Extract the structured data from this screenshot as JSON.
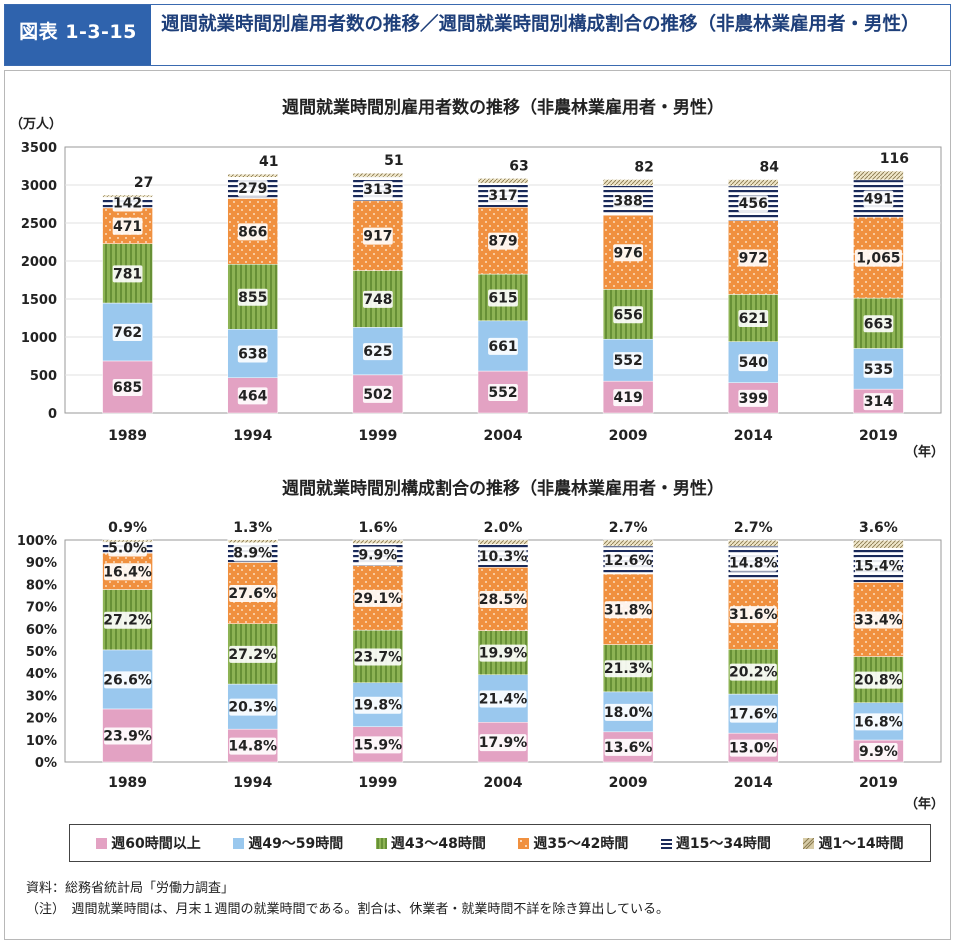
{
  "header": {
    "figure_label": "図表 1-3-15",
    "title": "週間就業時間別雇用者数の推移／週間就業時間別構成割合の推移（非農林業雇用者・男性）"
  },
  "colors": {
    "h60": "#e3a2c3",
    "h49": "#9ac8ee",
    "h43": "#8db354",
    "h35": "#f0903f",
    "h15": "#1a2a5a",
    "h1": "#d8cda8"
  },
  "legend": [
    {
      "key": "h60",
      "label": "週60時間以上",
      "pattern": "pink-icon"
    },
    {
      "key": "h49",
      "label": "週49～59時間",
      "pattern": "blue-icon"
    },
    {
      "key": "h43",
      "label": "週43～48時間",
      "pattern": "green-striped-icon"
    },
    {
      "key": "h35",
      "label": "週35～42時間",
      "pattern": "orange-dotted-icon"
    },
    {
      "key": "h15",
      "label": "週15～34時間",
      "pattern": "navy-striped-icon"
    },
    {
      "key": "h1",
      "label": "週1～14時間",
      "pattern": "beige-hatched-icon"
    }
  ],
  "notes": {
    "source": "資料：総務省統計局「労働力調査」",
    "note": "（注）　週間就業時間は、月末１週間の就業時間である。割合は、休業者・就業時間不詳を除き算出している。"
  },
  "chart_data": [
    {
      "type": "bar",
      "stacked": true,
      "title": "週間就業時間別雇用者数の推移（非農林業雇用者・男性）",
      "ylabel": "（万人）",
      "xlabel": "（年）",
      "ylim": [
        0,
        3500
      ],
      "yticks": [
        0,
        500,
        1000,
        1500,
        2000,
        2500,
        3000,
        3500
      ],
      "ytick_labels": [
        "0",
        "500",
        "1000",
        "1500",
        "2000",
        "2500",
        "3000",
        "3500"
      ],
      "categories": [
        "1989",
        "1994",
        "1999",
        "2004",
        "2009",
        "2014",
        "2019"
      ],
      "series": [
        {
          "key": "h60",
          "name": "週60時間以上",
          "values": [
            685,
            464,
            502,
            552,
            419,
            399,
            314
          ],
          "labels": [
            "685",
            "464",
            "502",
            "552",
            "419",
            "399",
            "314"
          ]
        },
        {
          "key": "h49",
          "name": "週49～59時間",
          "values": [
            762,
            638,
            625,
            661,
            552,
            540,
            535
          ],
          "labels": [
            "762",
            "638",
            "625",
            "661",
            "552",
            "540",
            "535"
          ]
        },
        {
          "key": "h43",
          "name": "週43～48時間",
          "values": [
            781,
            855,
            748,
            615,
            656,
            621,
            663
          ],
          "labels": [
            "781",
            "855",
            "748",
            "615",
            "656",
            "621",
            "663"
          ]
        },
        {
          "key": "h35",
          "name": "週35～42時間",
          "values": [
            471,
            866,
            917,
            879,
            976,
            972,
            1065
          ],
          "labels": [
            "471",
            "866",
            "917",
            "879",
            "976",
            "972",
            "1,065"
          ]
        },
        {
          "key": "h15",
          "name": "週15～34時間",
          "values": [
            142,
            279,
            313,
            317,
            388,
            456,
            491
          ],
          "labels": [
            "142",
            "279",
            "313",
            "317",
            "388",
            "456",
            "491"
          ]
        },
        {
          "key": "h1",
          "name": "週1～14時間",
          "values": [
            27,
            41,
            51,
            63,
            82,
            84,
            116
          ],
          "labels": [
            "27",
            "41",
            "51",
            "63",
            "82",
            "84",
            "116"
          ]
        }
      ]
    },
    {
      "type": "bar",
      "stacked": true,
      "title": "週間就業時間別構成割合の推移（非農林業雇用者・男性）",
      "xlabel": "（年）",
      "ylim": [
        0,
        100
      ],
      "yticks": [
        0,
        10,
        20,
        30,
        40,
        50,
        60,
        70,
        80,
        90,
        100
      ],
      "ytick_labels": [
        "0%",
        "10%",
        "20%",
        "30%",
        "40%",
        "50%",
        "60%",
        "70%",
        "80%",
        "90%",
        "100%"
      ],
      "categories": [
        "1989",
        "1994",
        "1999",
        "2004",
        "2009",
        "2014",
        "2019"
      ],
      "series": [
        {
          "key": "h60",
          "name": "週60時間以上",
          "values": [
            23.9,
            14.8,
            15.9,
            17.9,
            13.6,
            13.0,
            9.9
          ],
          "labels": [
            "23.9%",
            "14.8%",
            "15.9%",
            "17.9%",
            "13.6%",
            "13.0%",
            "9.9%"
          ]
        },
        {
          "key": "h49",
          "name": "週49～59時間",
          "values": [
            26.6,
            20.3,
            19.8,
            21.4,
            18.0,
            17.6,
            16.8
          ],
          "labels": [
            "26.6%",
            "20.3%",
            "19.8%",
            "21.4%",
            "18.0%",
            "17.6%",
            "16.8%"
          ]
        },
        {
          "key": "h43",
          "name": "週43～48時間",
          "values": [
            27.2,
            27.2,
            23.7,
            19.9,
            21.3,
            20.2,
            20.8
          ],
          "labels": [
            "27.2%",
            "27.2%",
            "23.7%",
            "19.9%",
            "21.3%",
            "20.2%",
            "20.8%"
          ]
        },
        {
          "key": "h35",
          "name": "週35～42時間",
          "values": [
            16.4,
            27.6,
            29.1,
            28.5,
            31.8,
            31.6,
            33.4
          ],
          "labels": [
            "16.4%",
            "27.6%",
            "29.1%",
            "28.5%",
            "31.8%",
            "31.6%",
            "33.4%"
          ]
        },
        {
          "key": "h15",
          "name": "週15～34時間",
          "values": [
            5.0,
            8.9,
            9.9,
            10.3,
            12.6,
            14.8,
            15.4
          ],
          "labels": [
            "5.0%",
            "8.9%",
            "9.9%",
            "10.3%",
            "12.6%",
            "14.8%",
            "15.4%"
          ]
        },
        {
          "key": "h1",
          "name": "週1～14時間",
          "values": [
            0.9,
            1.3,
            1.6,
            2.0,
            2.7,
            2.7,
            3.6
          ],
          "labels": [
            "0.9%",
            "1.3%",
            "1.6%",
            "2.0%",
            "2.7%",
            "2.7%",
            "3.6%"
          ]
        }
      ]
    }
  ]
}
